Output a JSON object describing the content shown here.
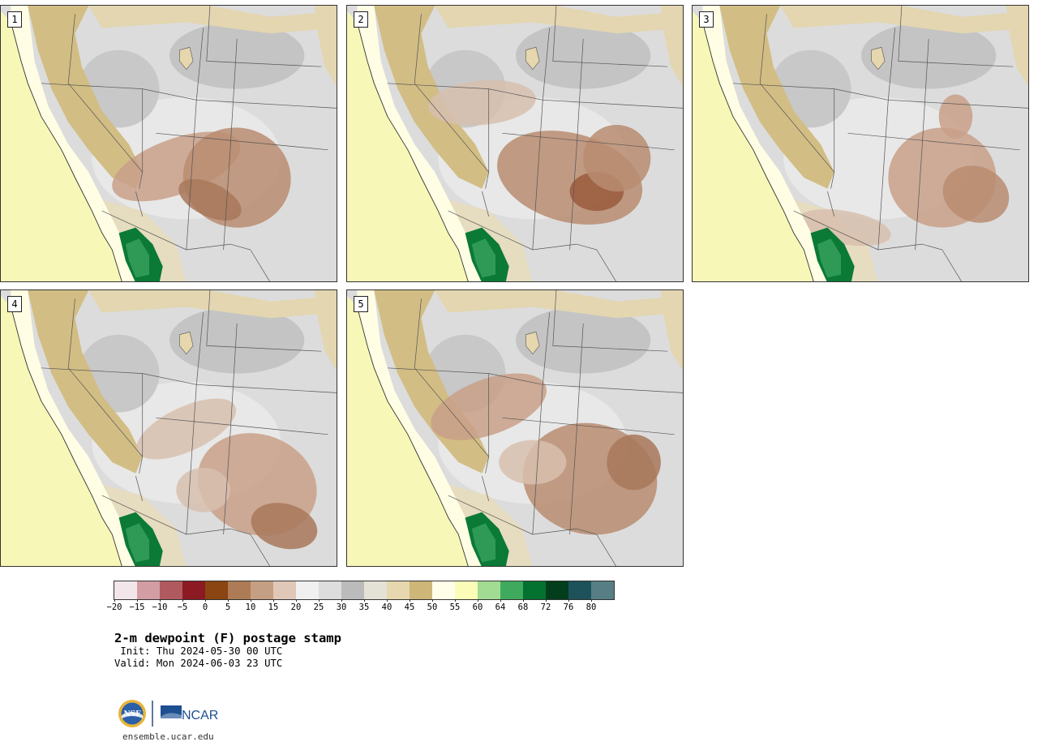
{
  "panels": [
    {
      "label": "1",
      "blobs": [
        [
          0.52,
          0.58,
          0.2,
          0.1,
          -20,
          "#c9a088"
        ],
        [
          0.7,
          0.62,
          0.16,
          0.18,
          10,
          "#b98c70"
        ],
        [
          0.62,
          0.7,
          0.1,
          0.06,
          25,
          "#a8785a"
        ]
      ]
    },
    {
      "label": "2",
      "blobs": [
        [
          0.4,
          0.35,
          0.16,
          0.08,
          -5,
          "#d7bfae"
        ],
        [
          0.66,
          0.62,
          0.22,
          0.16,
          15,
          "#b98c70"
        ],
        [
          0.74,
          0.67,
          0.08,
          0.07,
          0,
          "#9a5a3c"
        ],
        [
          0.8,
          0.55,
          0.1,
          0.12,
          20,
          "#b98c70"
        ]
      ]
    },
    {
      "label": "3",
      "blobs": [
        [
          0.74,
          0.62,
          0.16,
          0.18,
          0,
          "#c9a088"
        ],
        [
          0.84,
          0.68,
          0.1,
          0.1,
          20,
          "#b98c70"
        ],
        [
          0.45,
          0.8,
          0.14,
          0.06,
          10,
          "#d7bfae"
        ],
        [
          0.78,
          0.4,
          0.05,
          0.08,
          0,
          "#c9a088"
        ]
      ]
    },
    {
      "label": "4",
      "blobs": [
        [
          0.55,
          0.5,
          0.16,
          0.08,
          -25,
          "#d7bfae"
        ],
        [
          0.76,
          0.7,
          0.18,
          0.18,
          20,
          "#c9a088"
        ],
        [
          0.84,
          0.85,
          0.1,
          0.08,
          15,
          "#a8785a"
        ],
        [
          0.6,
          0.72,
          0.08,
          0.08,
          0,
          "#d7bfae"
        ]
      ]
    },
    {
      "label": "5",
      "blobs": [
        [
          0.42,
          0.42,
          0.18,
          0.1,
          -20,
          "#c9a088"
        ],
        [
          0.72,
          0.68,
          0.2,
          0.2,
          10,
          "#b98c70"
        ],
        [
          0.85,
          0.62,
          0.08,
          0.1,
          0,
          "#a8785a"
        ],
        [
          0.55,
          0.62,
          0.1,
          0.08,
          0,
          "#d7bfae"
        ]
      ]
    }
  ],
  "colorbar": {
    "colors": [
      "#f3e6ea",
      "#d39ea3",
      "#b05a60",
      "#8c1a22",
      "#8a4512",
      "#ad7b55",
      "#c59f84",
      "#e0c8b8",
      "#f0f0f0",
      "#dddddd",
      "#bbbbbb",
      "#e4e2d6",
      "#e6d7ae",
      "#cdb678",
      "#fffee8",
      "#fafcb8",
      "#a2dc92",
      "#3faa5d",
      "#03712f",
      "#023d1c",
      "#1d525a",
      "#577e85"
    ],
    "ticks": [
      "−20",
      "−15",
      "−10",
      "−5",
      "0",
      "5",
      "10",
      "15",
      "20",
      "25",
      "30",
      "35",
      "40",
      "45",
      "50",
      "55",
      "60",
      "64",
      "68",
      "72",
      "76",
      "80"
    ]
  },
  "title": "2-m dewpoint (F) postage stamp",
  "init_text": " Init: Thu 2024-05-30 00 UTC",
  "valid_text": "Valid: Mon 2024-06-03 23 UTC",
  "logo": {
    "nsf": "NSF",
    "ncar": "NCAR"
  },
  "website": "ensemble.ucar.edu"
}
